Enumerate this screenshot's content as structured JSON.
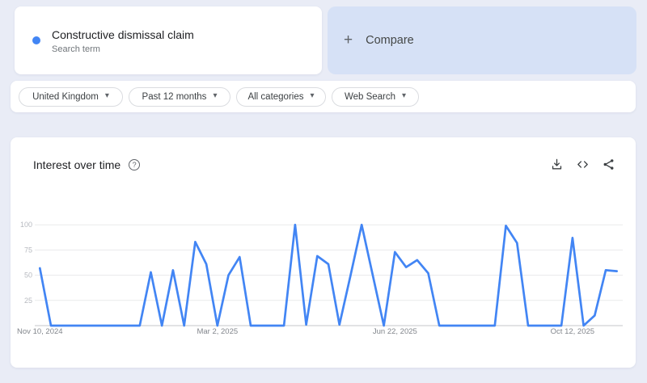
{
  "colors": {
    "page_bg": "#e9ecf6",
    "compare_bg": "#d6e1f6",
    "series_blue": "#4285f4",
    "gridline": "#e9eaec",
    "baseline": "#c4c7ca",
    "x_label": "#82868c",
    "y_label": "#b7bac0"
  },
  "icons": {
    "caret_down_glyph": "▾",
    "plus_glyph": "+",
    "help_glyph": "?"
  },
  "search_card": {
    "term": "Constructive dismissal claim",
    "subtitle": "Search term"
  },
  "compare_card": {
    "label": "Compare"
  },
  "filters": [
    {
      "label": "United Kingdom"
    },
    {
      "label": "Past 12 months"
    },
    {
      "label": "All categories"
    },
    {
      "label": "Web Search"
    }
  ],
  "chart_card": {
    "title": "Interest over time"
  },
  "chart_data": {
    "type": "line",
    "title": "Interest over time",
    "x_unit": "week",
    "x_range": [
      "Nov 10, 2024",
      "Nov 2, 2025"
    ],
    "ylim": [
      0,
      100
    ],
    "y_ticks": [
      25,
      50,
      75,
      100
    ],
    "grid": "horizontal",
    "legend_position": "none",
    "x_ticks": [
      {
        "label": "Nov 10, 2024",
        "index": 0
      },
      {
        "label": "Mar 2, 2025",
        "index": 16
      },
      {
        "label": "Jun 22, 2025",
        "index": 32
      },
      {
        "label": "Oct 12, 2025",
        "index": 48
      }
    ],
    "series": [
      {
        "name": "Constructive dismissal claim",
        "color": "#4285f4",
        "values": [
          57,
          0,
          0,
          0,
          0,
          0,
          0,
          0,
          0,
          0,
          53,
          0,
          55,
          0,
          83,
          61,
          0,
          50,
          68,
          0,
          0,
          0,
          0,
          100,
          1,
          69,
          61,
          1,
          50,
          100,
          50,
          0,
          73,
          58,
          65,
          52,
          0,
          0,
          0,
          0,
          0,
          0,
          99,
          82,
          0,
          0,
          0,
          0,
          87,
          0,
          10,
          55,
          54
        ]
      }
    ]
  }
}
